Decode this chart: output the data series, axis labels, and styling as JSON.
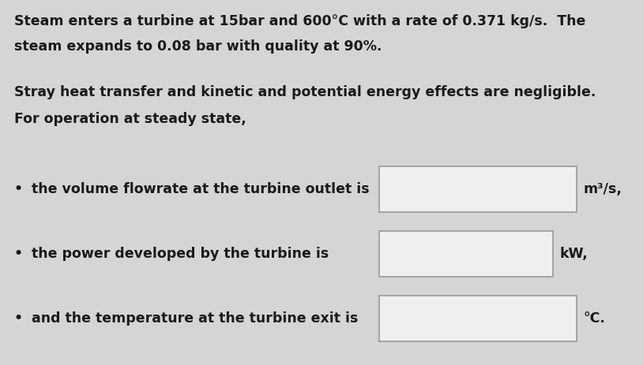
{
  "background_color": "#d5d5d5",
  "text_color": "#1a1a1a",
  "font_size": 12.5,
  "line1": "Steam enters a turbine at 15bar and 600°C with a rate of 0.371 kg/s.  The",
  "line2": "steam expands to 0.08 bar with quality at 90%.",
  "line3": "Stray heat transfer and kinetic and potential energy effects are negligible.",
  "line4": "For operation at steady state,",
  "bullet1_text": "the volume flowrate at the turbine outlet is",
  "bullet1_unit": "m³/s,",
  "bullet2_text": "the power developed by the turbine is",
  "bullet2_unit": "kW,",
  "bullet3_text": "and the temperature at the turbine exit is",
  "bullet3_unit": "°C.",
  "box_facecolor": "#efefef",
  "box_edgecolor": "#999999",
  "bullet_char": "•",
  "fig_width": 8.14,
  "fig_height": 4.63,
  "dpi": 100
}
